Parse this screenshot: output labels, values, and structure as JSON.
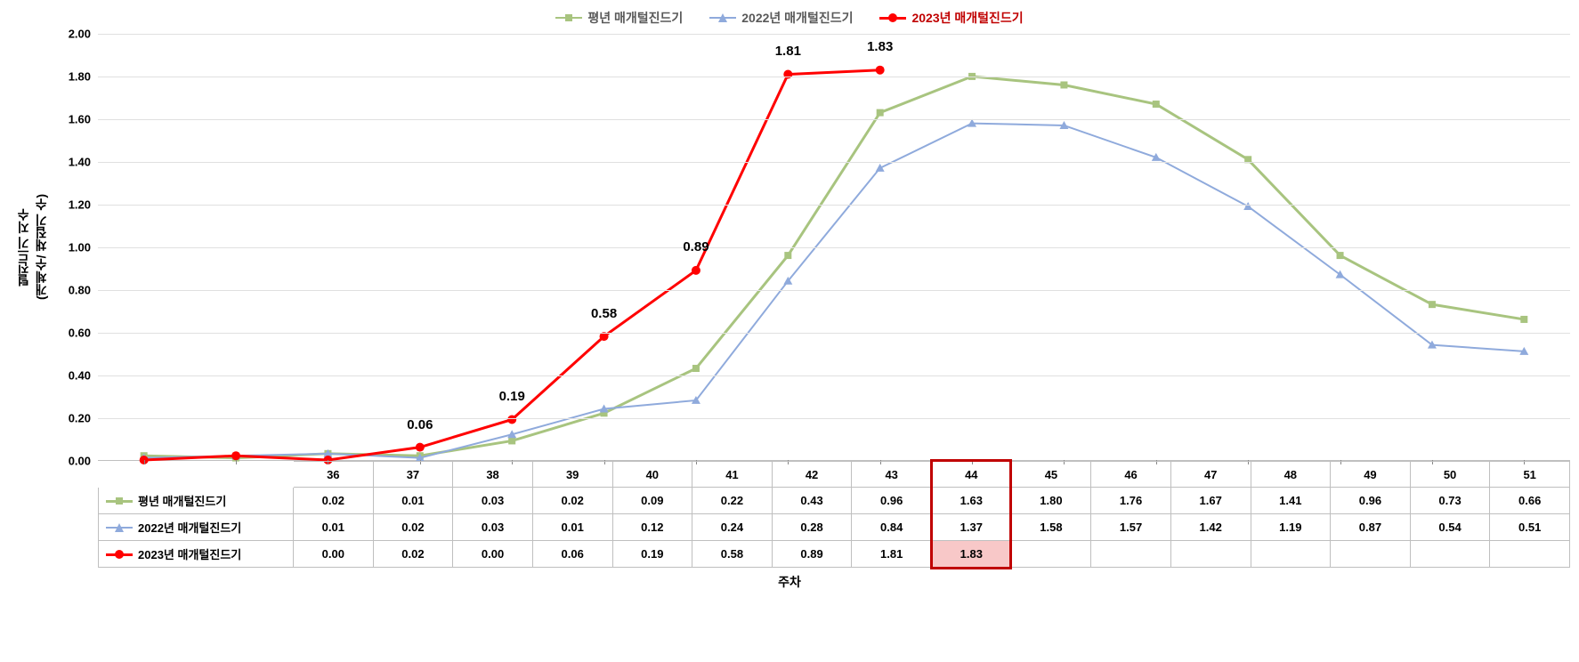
{
  "type": "line-with-data-table",
  "legend": {
    "position": "top-center",
    "items": [
      {
        "label": "평년 매개털진드기",
        "color": "#a8c47f",
        "marker": "square"
      },
      {
        "label": "2022년 매개털진드기",
        "color": "#8faadc",
        "marker": "triangle"
      },
      {
        "label": "2023년 매개털진드기",
        "color": "#ff0000",
        "marker": "circle",
        "line_width": 3
      }
    ]
  },
  "yaxis": {
    "label": "털진드기 지수\n(개체수/ 채집기 수)",
    "min": 0.0,
    "max": 2.0,
    "step": 0.2,
    "ticks": [
      "0.00",
      "0.20",
      "0.40",
      "0.60",
      "0.80",
      "1.00",
      "1.20",
      "1.40",
      "1.60",
      "1.80",
      "2.00"
    ],
    "grid_color": "#e0e0e0",
    "label_fontsize": 14
  },
  "xaxis": {
    "label": "주차",
    "categories": [
      "36",
      "37",
      "38",
      "39",
      "40",
      "41",
      "42",
      "43",
      "44",
      "45",
      "46",
      "47",
      "48",
      "49",
      "50",
      "51"
    ]
  },
  "series": [
    {
      "key": "avg",
      "name": "평년 매개털진드기",
      "color": "#a8c47f",
      "marker": "square",
      "line_width": 3,
      "data": [
        0.02,
        0.01,
        0.03,
        0.02,
        0.09,
        0.22,
        0.43,
        0.96,
        1.63,
        1.8,
        1.76,
        1.67,
        1.41,
        0.96,
        0.73,
        0.66
      ],
      "show_labels": false
    },
    {
      "key": "y2022",
      "name": "2022년 매개털진드기",
      "color": "#8faadc",
      "marker": "triangle",
      "line_width": 2,
      "data": [
        0.01,
        0.02,
        0.03,
        0.01,
        0.12,
        0.24,
        0.28,
        0.84,
        1.37,
        1.58,
        1.57,
        1.42,
        1.19,
        0.87,
        0.54,
        0.51
      ],
      "show_labels": false
    },
    {
      "key": "y2023",
      "name": "2023년 매개털진드기",
      "color": "#ff0000",
      "marker": "circle",
      "line_width": 3,
      "data": [
        0.0,
        0.02,
        0.0,
        0.06,
        0.19,
        0.58,
        0.89,
        1.81,
        1.83
      ],
      "show_labels": true,
      "label_points": [
        3,
        4,
        5,
        6,
        7,
        8
      ],
      "label_offset_y": -18
    }
  ],
  "data_table": {
    "rows": [
      {
        "key": "avg",
        "values": [
          "0.02",
          "0.01",
          "0.03",
          "0.02",
          "0.09",
          "0.22",
          "0.43",
          "0.96",
          "1.63",
          "1.80",
          "1.76",
          "1.67",
          "1.41",
          "0.96",
          "0.73",
          "0.66"
        ]
      },
      {
        "key": "y2022",
        "values": [
          "0.01",
          "0.02",
          "0.03",
          "0.01",
          "0.12",
          "0.24",
          "0.28",
          "0.84",
          "1.37",
          "1.58",
          "1.57",
          "1.42",
          "1.19",
          "0.87",
          "0.54",
          "0.51"
        ]
      },
      {
        "key": "y2023",
        "values": [
          "0.00",
          "0.02",
          "0.00",
          "0.06",
          "0.19",
          "0.58",
          "0.89",
          "1.81",
          "1.83",
          "",
          "",
          "",
          "",
          "",
          "",
          ""
        ]
      }
    ]
  },
  "highlight": {
    "col_index": 8,
    "border_color": "#c00000",
    "cell_fill": "#f8c8c8",
    "cell_row": 2
  },
  "background_color": "#ffffff",
  "tick_fontsize": 13,
  "cell_fontsize": 13
}
